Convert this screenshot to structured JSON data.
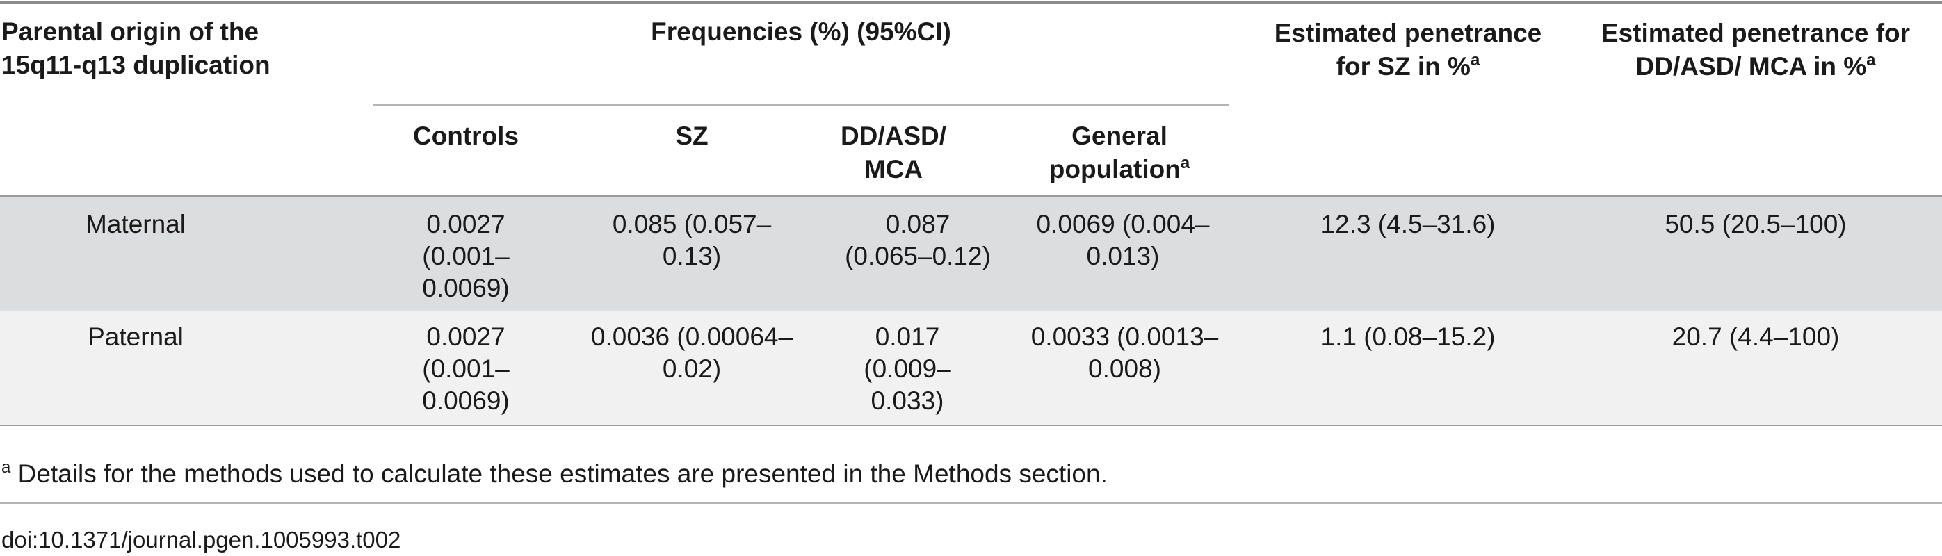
{
  "table": {
    "headers": {
      "parental_origin": "Parental origin of the 15q11-q13 duplication",
      "frequencies_group": "Frequencies (%) (95%CI)",
      "controls": "Controls",
      "sz": "SZ",
      "dd_asd_mca": "DD/ASD/ MCA",
      "general_population": "General population",
      "general_population_sup": "a",
      "penetrance_sz": "Estimated penetrance for SZ in %",
      "penetrance_sz_sup": "a",
      "penetrance_dd": "Estimated penetrance for DD/ASD/ MCA in %",
      "penetrance_dd_sup": "a"
    },
    "rows": [
      {
        "origin": "Maternal",
        "controls": "0.0027 (0.001–0.0069)",
        "sz": "0.085 (0.057–0.13)",
        "dd_asd_mca": "0.087 (0.065–0.12)",
        "general_population": "0.0069 (0.004–0.013)",
        "penetrance_sz": "12.3 (4.5–31.6)",
        "penetrance_dd": "50.5 (20.5–100)"
      },
      {
        "origin": "Paternal",
        "controls": "0.0027 (0.001–0.0069)",
        "sz": "0.0036 (0.00064–0.02)",
        "dd_asd_mca": "0.017 (0.009–0.033)",
        "general_population": "0.0033 (0.0013–0.008)",
        "penetrance_sz": "1.1 (0.08–15.2)",
        "penetrance_dd": "20.7 (4.4–100)"
      }
    ],
    "row_colors": [
      "#dcdddf",
      "#f1f1f2"
    ]
  },
  "footnote": {
    "marker": "a",
    "text": " Details for the methods used to calculate these estimates are presented in the Methods section."
  },
  "doi": "doi:10.1371/journal.pgen.1005993.t002"
}
